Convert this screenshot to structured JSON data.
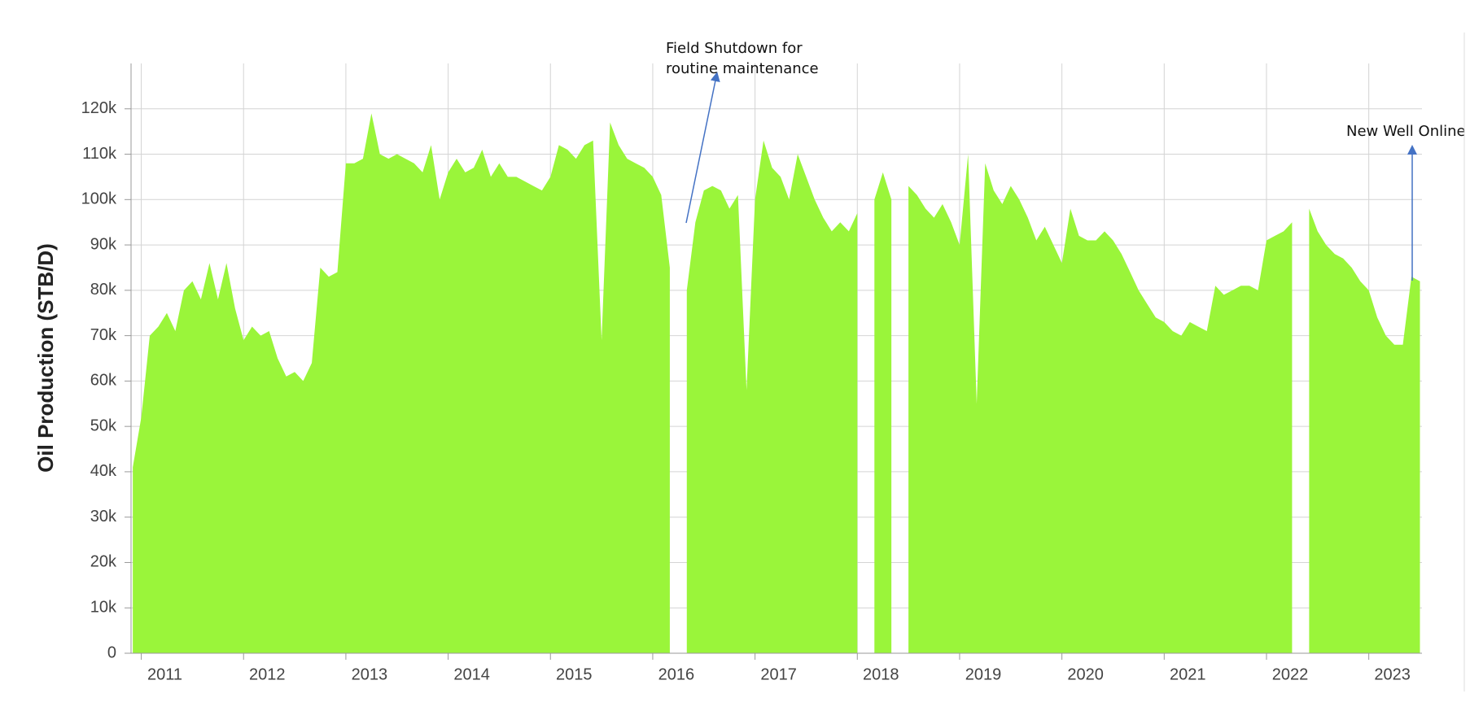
{
  "chart_data": {
    "type": "area",
    "y_label": "Oil Production (STB/D)",
    "color": "#9af53a",
    "grid": true,
    "xlim": [
      2010.9,
      2023.52
    ],
    "xticks": [
      2011,
      2012,
      2013,
      2014,
      2015,
      2016,
      2017,
      2018,
      2019,
      2020,
      2021,
      2022,
      2023
    ],
    "ylim": [
      0,
      130000
    ],
    "yticks": [
      0,
      {
        "value": 10000,
        "label": "10k"
      },
      {
        "value": 20000,
        "label": "20k"
      },
      {
        "value": 30000,
        "label": "30k"
      },
      {
        "value": 40000,
        "label": "40k"
      },
      {
        "value": 50000,
        "label": "50k"
      },
      {
        "value": 60000,
        "label": "60k"
      },
      {
        "value": 70000,
        "label": "70k"
      },
      {
        "value": 80000,
        "label": "80k"
      },
      {
        "value": 90000,
        "label": "90k"
      },
      {
        "value": 100000,
        "label": "100k"
      },
      {
        "value": 110000,
        "label": "110k"
      },
      {
        "value": 120000,
        "label": "120k"
      }
    ],
    "annotations": [
      {
        "lines": [
          "Field Shutdown for",
          "routine maintenance"
        ]
      },
      {
        "lines": [
          "New Well Online"
        ]
      }
    ],
    "series": [
      {
        "name": "Oil Production",
        "x": [
          2010.917,
          2011.0,
          2011.083,
          2011.167,
          2011.25,
          2011.333,
          2011.417,
          2011.5,
          2011.583,
          2011.667,
          2011.75,
          2011.833,
          2011.917,
          2012.0,
          2012.083,
          2012.167,
          2012.25,
          2012.333,
          2012.417,
          2012.5,
          2012.583,
          2012.667,
          2012.75,
          2012.833,
          2012.917,
          2013.0,
          2013.083,
          2013.167,
          2013.25,
          2013.333,
          2013.417,
          2013.5,
          2013.583,
          2013.667,
          2013.75,
          2013.833,
          2013.917,
          2014.0,
          2014.083,
          2014.167,
          2014.25,
          2014.333,
          2014.417,
          2014.5,
          2014.583,
          2014.667,
          2014.75,
          2014.833,
          2014.917,
          2015.0,
          2015.083,
          2015.167,
          2015.25,
          2015.333,
          2015.417,
          2015.5,
          2015.583,
          2015.667,
          2015.75,
          2015.833,
          2015.917,
          2016.0,
          2016.083,
          2016.167,
          2016.25,
          2016.333,
          2016.417,
          2016.5,
          2016.583,
          2016.667,
          2016.75,
          2016.833,
          2016.917,
          2017.0,
          2017.083,
          2017.167,
          2017.25,
          2017.333,
          2017.417,
          2017.5,
          2017.583,
          2017.667,
          2017.75,
          2017.833,
          2017.917,
          2018.0,
          2018.083,
          2018.167,
          2018.25,
          2018.333,
          2018.417,
          2018.5,
          2018.583,
          2018.667,
          2018.75,
          2018.833,
          2018.917,
          2019.0,
          2019.083,
          2019.167,
          2019.25,
          2019.333,
          2019.417,
          2019.5,
          2019.583,
          2019.667,
          2019.75,
          2019.833,
          2019.917,
          2020.0,
          2020.083,
          2020.167,
          2020.25,
          2020.333,
          2020.417,
          2020.5,
          2020.583,
          2020.667,
          2020.75,
          2020.833,
          2020.917,
          2021.0,
          2021.083,
          2021.167,
          2021.25,
          2021.333,
          2021.417,
          2021.5,
          2021.583,
          2021.667,
          2021.75,
          2021.833,
          2021.917,
          2022.0,
          2022.083,
          2022.167,
          2022.25,
          2022.333,
          2022.417,
          2022.5,
          2022.583,
          2022.667,
          2022.75,
          2022.833,
          2022.917,
          2023.0,
          2023.083,
          2023.167,
          2023.25,
          2023.333,
          2023.417,
          2023.5
        ],
        "values": [
          41000,
          52000,
          70000,
          72000,
          75000,
          71000,
          80000,
          82000,
          78000,
          86000,
          78000,
          86000,
          76000,
          69000,
          72000,
          70000,
          71000,
          65000,
          61000,
          62000,
          60000,
          64000,
          85000,
          83000,
          84000,
          108000,
          108000,
          109000,
          119000,
          110000,
          109000,
          110000,
          109000,
          108000,
          106000,
          112000,
          100000,
          106000,
          109000,
          106000,
          107000,
          111000,
          105000,
          108000,
          105000,
          105000,
          104000,
          103000,
          102000,
          105000,
          112000,
          111000,
          109000,
          112000,
          113000,
          69000,
          117000,
          112000,
          109000,
          108000,
          107000,
          105000,
          101000,
          85000,
          null,
          80000,
          95000,
          102000,
          103000,
          102000,
          98000,
          101000,
          58000,
          100000,
          113000,
          107000,
          105000,
          100000,
          110000,
          105000,
          100000,
          96000,
          93000,
          95000,
          93000,
          97000,
          null,
          100000,
          106000,
          100000,
          null,
          103000,
          101000,
          98000,
          96000,
          99000,
          95000,
          90000,
          110000,
          55000,
          108000,
          102000,
          99000,
          103000,
          100000,
          96000,
          91000,
          94000,
          90000,
          86000,
          98000,
          92000,
          91000,
          91000,
          93000,
          91000,
          88000,
          84000,
          80000,
          77000,
          74000,
          73000,
          71000,
          70000,
          73000,
          72000,
          71000,
          81000,
          79000,
          80000,
          81000,
          81000,
          80000,
          91000,
          92000,
          93000,
          95000,
          null,
          98000,
          93000,
          90000,
          88000,
          87000,
          85000,
          82000,
          80000,
          74000,
          70000,
          68000,
          68000,
          83000,
          82000
        ]
      }
    ]
  }
}
